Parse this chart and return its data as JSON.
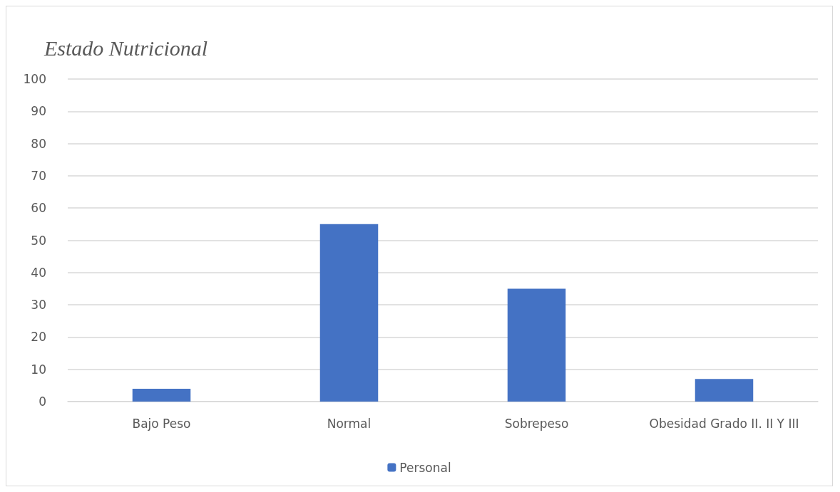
{
  "chart_data": {
    "type": "bar",
    "title": "Estado Nutricional",
    "categories": [
      "Bajo Peso",
      "Normal",
      "Sobrepeso",
      "Obesidad Grado II. II Y III"
    ],
    "series": [
      {
        "name": "Personal",
        "color": "#4472c4",
        "values": [
          4,
          55,
          35,
          7
        ]
      }
    ],
    "ylim": [
      0,
      100
    ],
    "yticks": [
      0,
      10,
      20,
      30,
      40,
      50,
      60,
      70,
      80,
      90,
      100
    ],
    "grid": "y",
    "legend": "bottom"
  }
}
